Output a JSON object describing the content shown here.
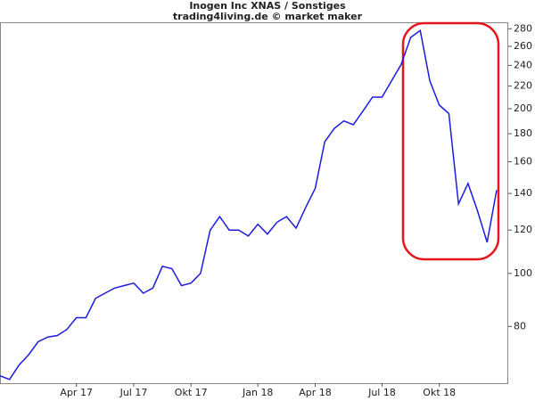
{
  "chart_data": {
    "type": "line",
    "title": "Inogen Inc XNAS / Sonstiges",
    "subtitle": "trading4living.de © market maker",
    "categories": [
      null,
      null,
      null,
      null,
      null,
      null,
      null,
      null,
      "Apr 17",
      null,
      null,
      null,
      null,
      null,
      "Jul 17",
      null,
      null,
      null,
      null,
      null,
      "Okt 17",
      null,
      null,
      null,
      null,
      null,
      null,
      "Jan 18",
      null,
      null,
      null,
      null,
      null,
      "Apr 18",
      null,
      null,
      null,
      null,
      null,
      null,
      "Jul 18",
      null,
      null,
      null,
      null,
      null,
      "Okt 18",
      null,
      null,
      null,
      null,
      null,
      null
    ],
    "values": [
      65,
      64,
      68,
      71,
      75,
      76.5,
      77,
      79,
      83,
      83,
      90,
      92,
      94,
      95,
      96,
      92,
      94,
      103,
      102,
      95,
      96,
      100,
      120,
      127,
      120,
      120,
      117,
      123,
      118,
      124,
      127,
      121,
      132,
      143,
      174,
      184,
      190,
      187,
      198,
      210,
      210,
      225,
      241,
      270,
      278,
      225,
      203,
      196,
      134,
      146,
      130,
      114,
      142
    ],
    "color": "#1c1ce0",
    "log_scale": true,
    "ylim": [
      63,
      291
    ],
    "yticks": [
      80,
      100,
      120,
      140,
      160,
      180,
      200,
      220,
      240,
      260,
      280
    ],
    "grid": false
  }
}
